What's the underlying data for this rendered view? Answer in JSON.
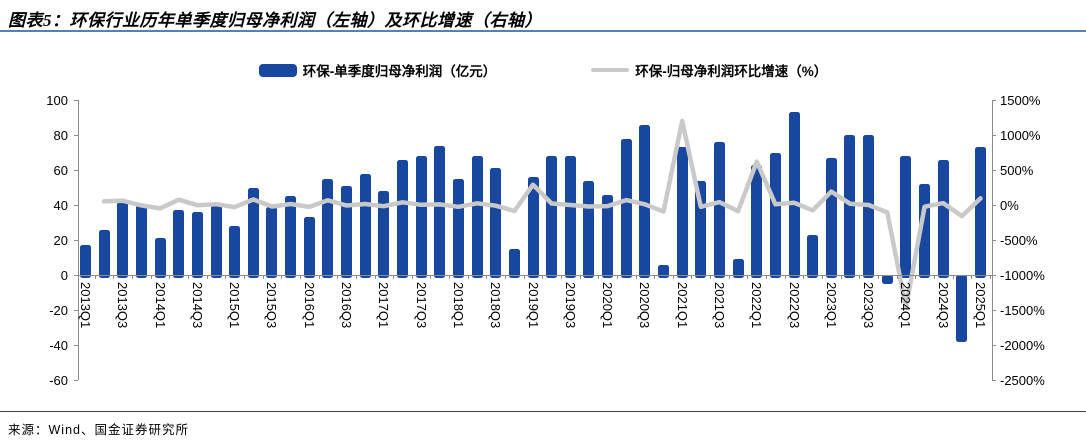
{
  "header": {
    "title": "图表5：环保行业历年单季度归母净利润（左轴）及环比增速（右轴）"
  },
  "legend": {
    "bar_label": "环保-单季度归母净利润（亿元）",
    "line_label": "环保-归母净利润环比增速（%）"
  },
  "footer": {
    "source": "来源：Wind、国金证券研究所"
  },
  "colors": {
    "bar": "#17479e",
    "line": "#c9c9c9",
    "title_rule": "#4f81bd",
    "footer_rule": "#404040",
    "axis": "#8c8c8c"
  },
  "chart_data": {
    "type": "bar",
    "title": "环保行业历年单季度归母净利润（左轴）及环比增速（右轴）",
    "categories": [
      "2013Q1",
      "2013Q2",
      "2013Q3",
      "2013Q4",
      "2014Q1",
      "2014Q2",
      "2014Q3",
      "2014Q4",
      "2015Q1",
      "2015Q2",
      "2015Q3",
      "2015Q4",
      "2016Q1",
      "2016Q2",
      "2016Q3",
      "2016Q4",
      "2017Q1",
      "2017Q2",
      "2017Q3",
      "2017Q4",
      "2018Q1",
      "2018Q2",
      "2018Q3",
      "2018Q4",
      "2019Q1",
      "2019Q2",
      "2019Q3",
      "2019Q4",
      "2020Q1",
      "2020Q2",
      "2020Q3",
      "2020Q4",
      "2021Q1",
      "2021Q2",
      "2021Q3",
      "2021Q4",
      "2022Q1",
      "2022Q2",
      "2022Q3",
      "2022Q4",
      "2023Q1",
      "2023Q2",
      "2023Q3",
      "2023Q4",
      "2024Q1",
      "2024Q2",
      "2024Q3",
      "2024Q4",
      "2025Q1"
    ],
    "x_tick_labels": [
      "2013Q1",
      "2013Q3",
      "2014Q1",
      "2014Q3",
      "2015Q1",
      "2015Q3",
      "2016Q1",
      "2016Q3",
      "2017Q1",
      "2017Q3",
      "2018Q1",
      "2018Q3",
      "2019Q1",
      "2019Q3",
      "2020Q1",
      "2020Q3",
      "2021Q1",
      "2021Q3",
      "2022Q1",
      "2022Q3",
      "2023Q1",
      "2023Q3",
      "2024Q1",
      "2024Q3",
      "2025Q1"
    ],
    "series": [
      {
        "name": "环保-单季度归母净利润（亿元）",
        "type": "bar",
        "axis": "left",
        "values": [
          17,
          26,
          42,
          40,
          21,
          37,
          36,
          40,
          28,
          50,
          39,
          45,
          33,
          55,
          51,
          58,
          48,
          66,
          68,
          74,
          55,
          68,
          61,
          15,
          56,
          68,
          68,
          54,
          46,
          78,
          86,
          6,
          73,
          54,
          76,
          9,
          63,
          70,
          93,
          23,
          67,
          80,
          80,
          -5,
          68,
          52,
          66,
          -38,
          73
        ]
      },
      {
        "name": "环保-归母净利润环比增速（%）",
        "type": "line",
        "axis": "right",
        "values": [
          null,
          53,
          62,
          -5,
          -48,
          76,
          -3,
          11,
          -30,
          79,
          -22,
          15,
          -27,
          67,
          -7,
          14,
          -17,
          38,
          3,
          9,
          -26,
          24,
          -10,
          -85,
          290,
          21,
          0,
          -21,
          -15,
          70,
          10,
          -93,
          1200,
          -26,
          41,
          -88,
          620,
          10,
          33,
          -75,
          191,
          19,
          0,
          -106,
          -1460,
          -24,
          27,
          -158,
          95
        ]
      }
    ],
    "left_axis": {
      "label": "亿元",
      "ticks": [
        100,
        80,
        60,
        40,
        20,
        0,
        -20,
        -40,
        -60
      ],
      "range": [
        -60,
        100
      ]
    },
    "right_axis": {
      "label": "%",
      "ticks": [
        "1500%",
        "1000%",
        "500%",
        "0%",
        "-500%",
        "-1000%",
        "-1500%",
        "-2000%",
        "-2500%"
      ],
      "tick_values": [
        1500,
        1000,
        500,
        0,
        -500,
        -1000,
        -1500,
        -2000,
        -2500
      ],
      "range": [
        -2500,
        1500
      ]
    },
    "grid": false,
    "legend_position": "top"
  }
}
